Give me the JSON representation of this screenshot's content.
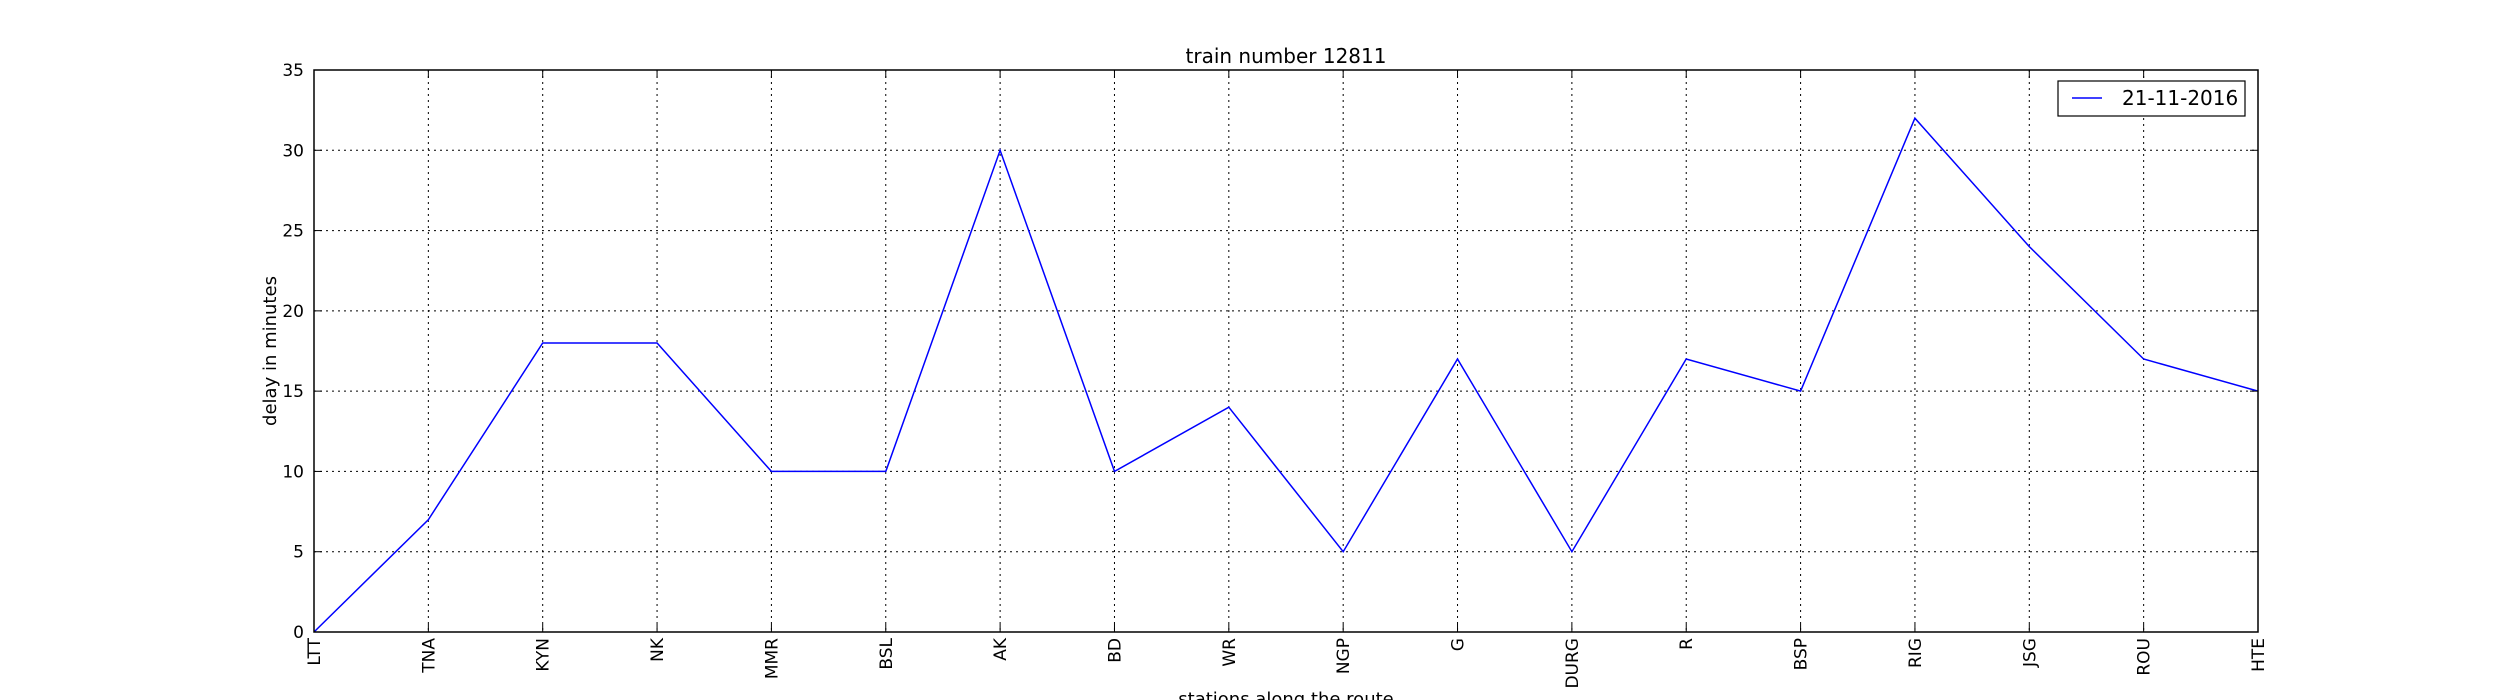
{
  "chart_data": {
    "type": "line",
    "title": "train number 12811",
    "xlabel": "stations along the route",
    "ylabel": "delay in minutes",
    "categories": [
      "LTT",
      "TNA",
      "KYN",
      "NK",
      "MMR",
      "BSL",
      "AK",
      "BD",
      "WR",
      "NGP",
      "G",
      "DURG",
      "R",
      "BSP",
      "RIG",
      "JSG",
      "ROU",
      "HTE"
    ],
    "series": [
      {
        "name": "21-11-2016",
        "color": "#0000ff",
        "values": [
          0,
          7,
          18,
          18,
          10,
          10,
          30,
          10,
          14,
          5,
          17,
          5,
          17,
          15,
          32,
          24,
          17,
          15
        ]
      }
    ],
    "yticks": [
      "0",
      "5",
      "10",
      "15",
      "20",
      "25",
      "30",
      "35"
    ],
    "ylim": [
      0,
      35
    ],
    "grid": true,
    "legend_position": "top-right"
  }
}
